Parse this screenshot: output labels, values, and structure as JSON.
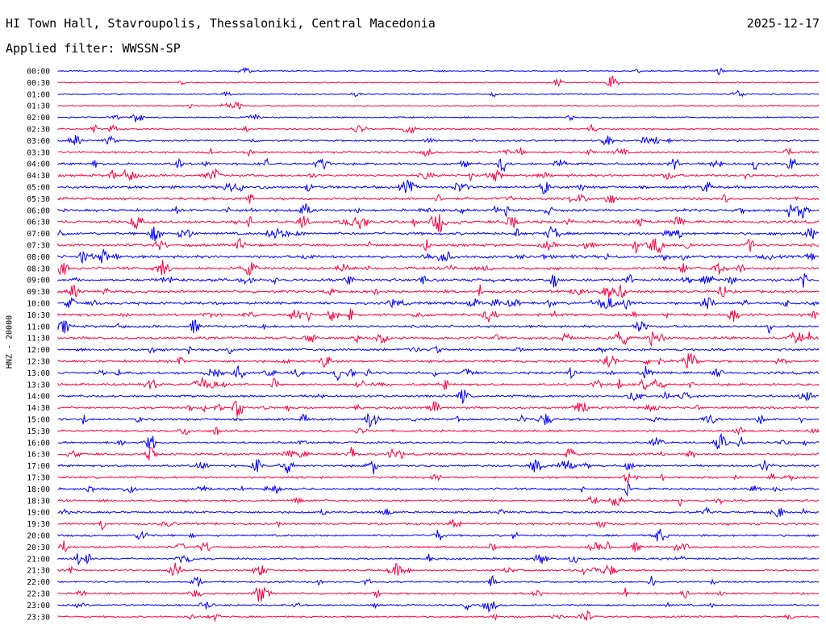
{
  "header": {
    "station": "HI Town Hall, Stavroupolis, Thessaloniki, Central Macedonia",
    "date": "2025-12-17",
    "filter_label": "Applied filter: WWSSN-SP"
  },
  "colors": {
    "trace_a": "#0000ff",
    "trace_b": "#ff0040",
    "text": "#000000",
    "background": "#ffffff"
  },
  "chart_data": {
    "type": "line",
    "title": "HI Town Hall, Stavroupolis, Thessaloniki, Central Macedonia",
    "subtitle": "Applied filter: WWSSN-SP",
    "xlabel": "",
    "ylabel": "HNZ - 20000",
    "row_labels": [
      "00:00",
      "00:30",
      "01:00",
      "01:30",
      "02:00",
      "02:30",
      "03:00",
      "03:30",
      "04:00",
      "04:30",
      "05:00",
      "05:30",
      "06:00",
      "06:30",
      "07:00",
      "07:30",
      "08:00",
      "08:30",
      "09:00",
      "09:30",
      "10:00",
      "10:30",
      "11:00",
      "11:30",
      "12:00",
      "12:30",
      "13:00",
      "13:30",
      "14:00",
      "14:30",
      "15:00",
      "15:30",
      "16:00",
      "16:30",
      "17:00",
      "17:30",
      "18:00",
      "18:30",
      "19:00",
      "19:30",
      "20:00",
      "20:30",
      "21:00",
      "21:30",
      "22:00",
      "22:30",
      "23:00",
      "23:30"
    ],
    "row_colors": [
      "blue",
      "red"
    ],
    "row_minutes": 30,
    "activity_level": [
      0.15,
      0.2,
      0.25,
      0.25,
      0.3,
      0.35,
      0.45,
      0.55,
      0.7,
      0.75,
      0.85,
      0.85,
      0.85,
      0.85,
      0.85,
      0.85,
      0.85,
      0.85,
      0.85,
      0.8,
      0.85,
      0.8,
      0.75,
      0.75,
      0.8,
      0.75,
      0.75,
      0.7,
      0.7,
      0.65,
      0.65,
      0.6,
      0.6,
      0.65,
      0.65,
      0.6,
      0.6,
      0.6,
      0.6,
      0.6,
      0.6,
      0.55,
      0.55,
      0.5,
      0.5,
      0.5,
      0.45,
      0.45
    ],
    "grid": false,
    "legend": "none"
  }
}
